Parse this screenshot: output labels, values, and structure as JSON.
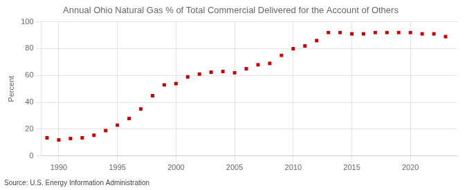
{
  "chart_data": {
    "type": "scatter",
    "title": "Annual Ohio Natural Gas % of Total Commercial Delivered for the Account of Others",
    "ylabel": "Percent",
    "annotation": "Source: U.S. Energy Information Administration",
    "x": [
      1989,
      1990,
      1991,
      1992,
      1993,
      1994,
      1995,
      1996,
      1997,
      1998,
      1999,
      2000,
      2001,
      2002,
      2003,
      2004,
      2005,
      2006,
      2007,
      2008,
      2009,
      2010,
      2011,
      2012,
      2013,
      2014,
      2015,
      2016,
      2017,
      2018,
      2019,
      2020,
      2021,
      2022,
      2023
    ],
    "values": [
      13.5,
      12.0,
      13.0,
      13.5,
      15.5,
      19.0,
      23.0,
      28.0,
      35.0,
      45.0,
      53.0,
      54.0,
      59.0,
      61.0,
      62.5,
      63.0,
      62.0,
      65.0,
      68.0,
      69.0,
      75.0,
      80.0,
      82.0,
      86.0,
      92.0,
      92.0,
      91.0,
      91.0,
      92.0,
      92.0,
      92.0,
      92.0,
      91.0,
      91.0,
      89.0
    ],
    "color": "#cc0000",
    "marker": "square",
    "xlim": [
      1988.5,
      2024
    ],
    "ylim": [
      0,
      100
    ],
    "xticks": [
      1990,
      1995,
      2000,
      2005,
      2010,
      2015,
      2020
    ],
    "yticks": [
      0,
      20,
      40,
      60,
      80,
      100
    ],
    "grid": true
  }
}
